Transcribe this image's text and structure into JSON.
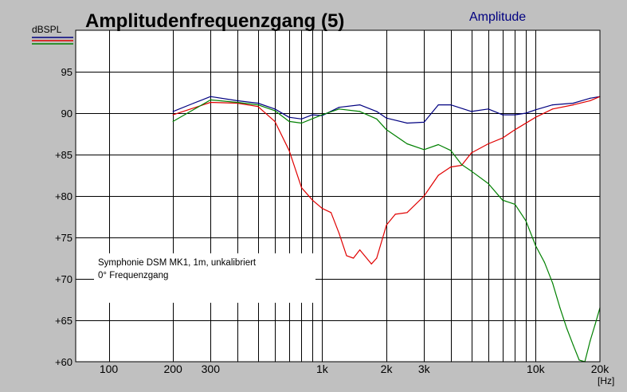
{
  "window": {
    "title": "Amplitudenfrequenzgang (5)",
    "mode_label": "Amplitude",
    "mode_color": "#000080"
  },
  "chart_data": {
    "type": "line",
    "title": "Amplitudenfrequenzgang (5)",
    "subtitle": "Amplitude",
    "ylabel": "dBSPL",
    "xlabel": "[Hz]",
    "xscale": "log",
    "xlim": [
      70,
      20000
    ],
    "ylim": [
      60,
      100
    ],
    "grid": true,
    "x_ticks": [
      {
        "value": 100,
        "label": "100"
      },
      {
        "value": 200,
        "label": "200"
      },
      {
        "value": 300,
        "label": "300"
      },
      {
        "value": 1000,
        "label": "1k"
      },
      {
        "value": 2000,
        "label": "2k"
      },
      {
        "value": 3000,
        "label": "3k"
      },
      {
        "value": 10000,
        "label": "10k"
      },
      {
        "value": 20000,
        "label": "20k"
      }
    ],
    "y_ticks": [
      {
        "value": 95,
        "label": "95"
      },
      {
        "value": 90,
        "label": "90"
      },
      {
        "value": 85,
        "label": "+85"
      },
      {
        "value": 80,
        "label": "+80"
      },
      {
        "value": 75,
        "label": "+75"
      },
      {
        "value": 70,
        "label": "+70"
      },
      {
        "value": 65,
        "label": "+65"
      },
      {
        "value": 60,
        "label": "+60"
      }
    ],
    "annotation": [
      "Symphonie DSM MK1, 1m, unkalibriert",
      "0° Frequenzgang"
    ],
    "series": [
      {
        "color": "#000080",
        "points": [
          [
            200,
            90.2
          ],
          [
            250,
            91.2
          ],
          [
            300,
            92.0
          ],
          [
            400,
            91.5
          ],
          [
            500,
            91.2
          ],
          [
            600,
            90.5
          ],
          [
            700,
            89.5
          ],
          [
            800,
            89.3
          ],
          [
            900,
            89.8
          ],
          [
            1000,
            89.7
          ],
          [
            1200,
            90.7
          ],
          [
            1500,
            91.0
          ],
          [
            1800,
            90.2
          ],
          [
            2000,
            89.4
          ],
          [
            2500,
            88.8
          ],
          [
            3000,
            88.9
          ],
          [
            3500,
            91.0
          ],
          [
            4000,
            91.0
          ],
          [
            5000,
            90.2
          ],
          [
            6000,
            90.5
          ],
          [
            7000,
            89.8
          ],
          [
            8000,
            89.8
          ],
          [
            9000,
            90.0
          ],
          [
            10000,
            90.4
          ],
          [
            12000,
            91.0
          ],
          [
            15000,
            91.2
          ],
          [
            18000,
            91.8
          ],
          [
            20000,
            92.0
          ]
        ]
      },
      {
        "color": "#e00000",
        "points": [
          [
            200,
            89.8
          ],
          [
            300,
            91.3
          ],
          [
            400,
            91.2
          ],
          [
            500,
            90.8
          ],
          [
            600,
            89.0
          ],
          [
            700,
            85.5
          ],
          [
            800,
            81.0
          ],
          [
            900,
            79.5
          ],
          [
            1000,
            78.5
          ],
          [
            1100,
            78.0
          ],
          [
            1200,
            75.5
          ],
          [
            1300,
            72.8
          ],
          [
            1400,
            72.5
          ],
          [
            1500,
            73.5
          ],
          [
            1700,
            71.8
          ],
          [
            1800,
            72.5
          ],
          [
            2000,
            76.5
          ],
          [
            2200,
            77.8
          ],
          [
            2500,
            78.0
          ],
          [
            3000,
            80.0
          ],
          [
            3500,
            82.5
          ],
          [
            4000,
            83.5
          ],
          [
            4500,
            83.7
          ],
          [
            5000,
            85.2
          ],
          [
            6000,
            86.3
          ],
          [
            7000,
            87.0
          ],
          [
            8000,
            88.0
          ],
          [
            10000,
            89.5
          ],
          [
            12000,
            90.5
          ],
          [
            15000,
            91.0
          ],
          [
            18000,
            91.5
          ],
          [
            20000,
            92.0
          ]
        ]
      },
      {
        "color": "#008000",
        "points": [
          [
            200,
            89.0
          ],
          [
            300,
            91.6
          ],
          [
            400,
            91.3
          ],
          [
            500,
            91.0
          ],
          [
            600,
            90.3
          ],
          [
            700,
            89.0
          ],
          [
            800,
            88.8
          ],
          [
            1000,
            89.8
          ],
          [
            1200,
            90.5
          ],
          [
            1500,
            90.2
          ],
          [
            1800,
            89.3
          ],
          [
            2000,
            88.0
          ],
          [
            2500,
            86.3
          ],
          [
            3000,
            85.6
          ],
          [
            3500,
            86.2
          ],
          [
            4000,
            85.5
          ],
          [
            4500,
            83.8
          ],
          [
            5000,
            83.0
          ],
          [
            6000,
            81.5
          ],
          [
            7000,
            79.5
          ],
          [
            8000,
            79.0
          ],
          [
            9000,
            77.0
          ],
          [
            10000,
            74.0
          ],
          [
            11000,
            72.0
          ],
          [
            12000,
            69.5
          ],
          [
            13000,
            66.5
          ],
          [
            14000,
            64.0
          ],
          [
            15000,
            62.0
          ],
          [
            16000,
            60.2
          ],
          [
            17000,
            60.0
          ],
          [
            18000,
            62.5
          ],
          [
            19000,
            64.5
          ],
          [
            20000,
            66.5
          ]
        ]
      }
    ]
  }
}
